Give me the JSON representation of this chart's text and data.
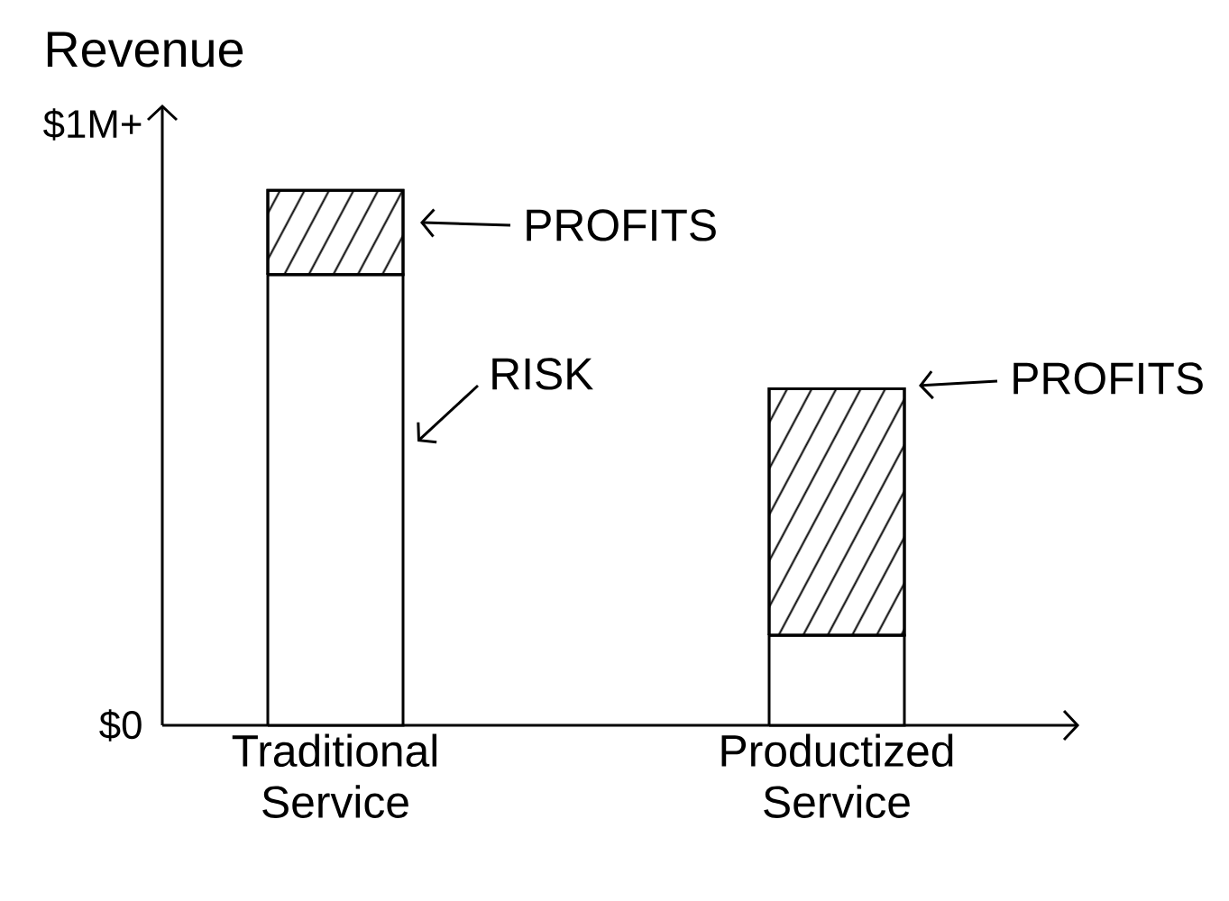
{
  "chart_data": {
    "type": "bar",
    "stacked": true,
    "ylabel": "Revenue",
    "categories": [
      "Traditional Service",
      "Productized Service"
    ],
    "series": [
      {
        "color": "#ffffff",
        "values": [
          0.75,
          0.15
        ]
      },
      {
        "color": "#ffffff",
        "values": [
          0.14,
          0.41
        ]
      }
    ],
    "ylim": [
      0,
      1.03
    ],
    "yticks": [
      {
        "value": 0,
        "label": "$0"
      },
      {
        "value": 1,
        "label": "$1M+"
      }
    ],
    "annotations": [
      "PROFITS",
      "RISK",
      "PROFITS"
    ]
  }
}
